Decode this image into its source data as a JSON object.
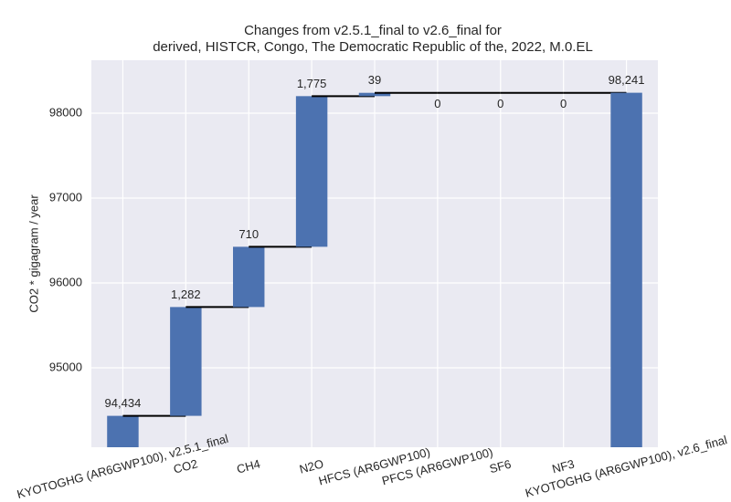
{
  "chart_data": {
    "type": "waterfall",
    "title": [
      "Changes from v2.5.1_final to v2.6_final for",
      "derived, HISTCR, Congo, The Democratic Republic of the, 2022, M.0.EL"
    ],
    "y_label": "CO2 * gigagram / year",
    "categories": [
      "KYOTOGHG (AR6GWP100), v2.5.1_final",
      "CO2",
      "CH4",
      "N2O",
      "HFCS (AR6GWP100)",
      "PFCS (AR6GWP100)",
      "SF6",
      "NF3",
      "KYOTOGHG (AR6GWP100), v2.6_final"
    ],
    "values": [
      94434,
      1282,
      710,
      1775,
      39,
      0,
      0,
      0,
      98241
    ],
    "value_labels": [
      "94,434",
      "1,282",
      "710",
      "1,775",
      "39",
      "0",
      "0",
      "0",
      "98,241"
    ],
    "totals": [
      true,
      false,
      false,
      false,
      false,
      false,
      false,
      false,
      true
    ],
    "color": "#4c72b0",
    "ylim": [
      94064,
      98624
    ],
    "yticks": [
      95000,
      96000,
      97000,
      98000
    ],
    "grid": true
  }
}
